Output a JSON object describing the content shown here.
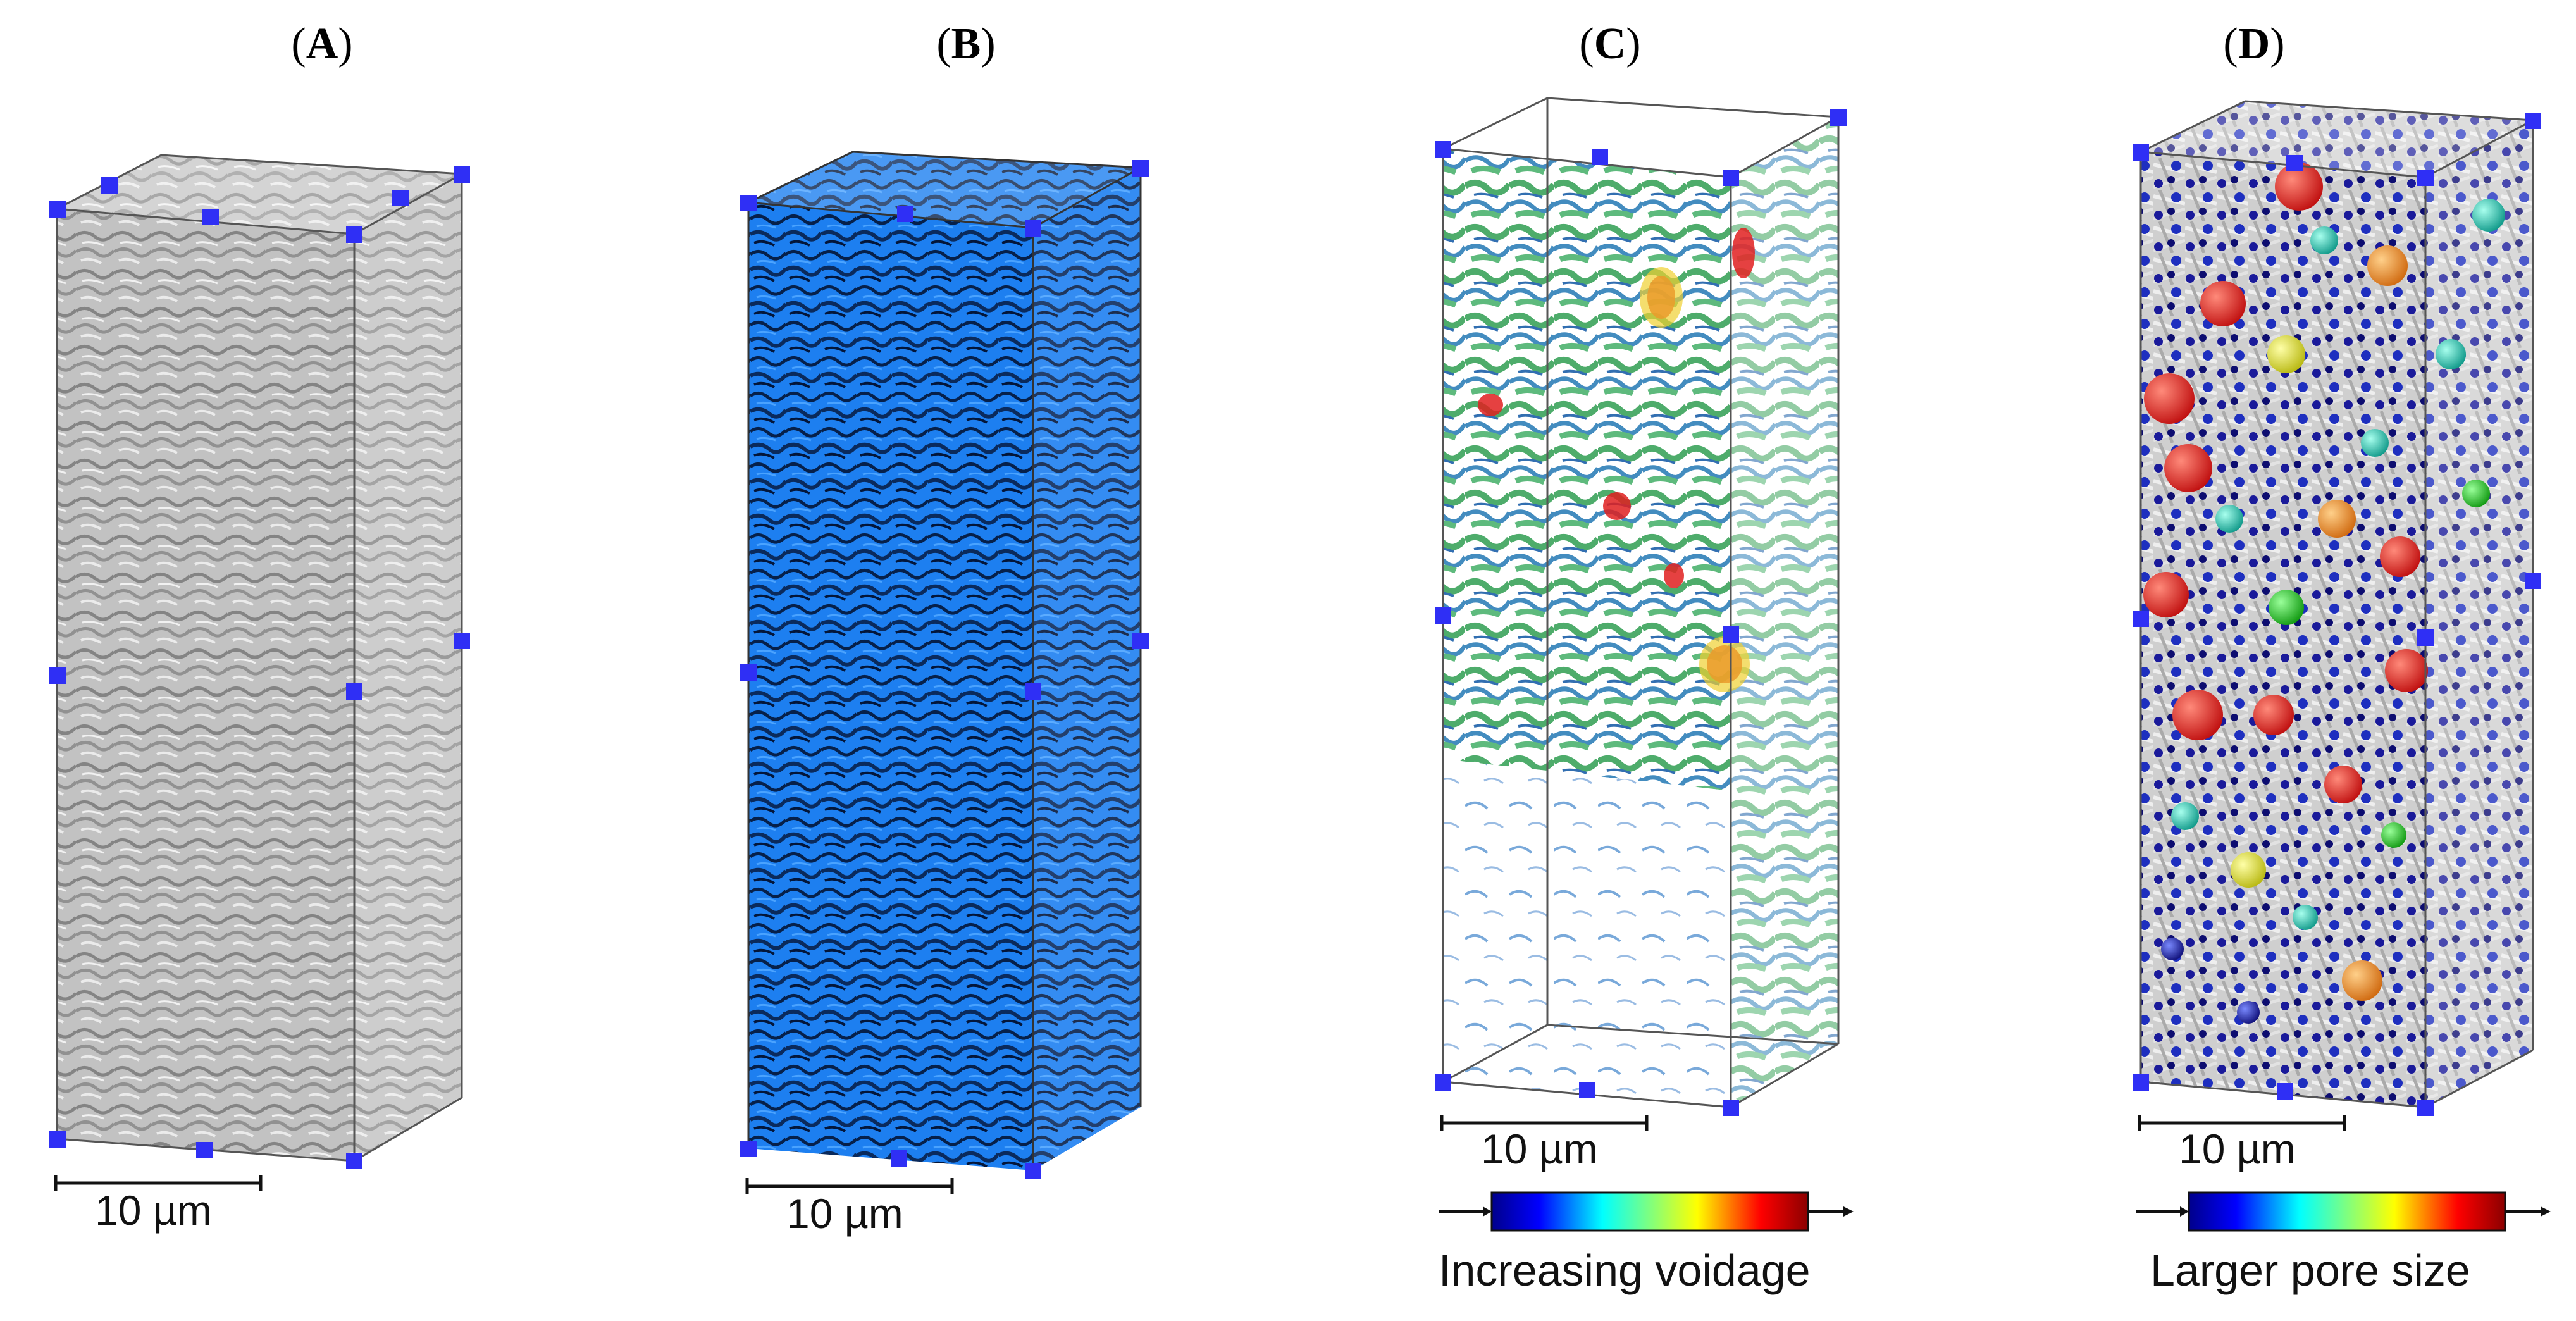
{
  "panels": [
    {
      "label": "A",
      "scale": "10 µm",
      "colorbar": null
    },
    {
      "label": "B",
      "scale": "10 µm",
      "colorbar": null
    },
    {
      "label": "C",
      "scale": "10 µm",
      "colorbar": "Increasing voidage"
    },
    {
      "label": "D",
      "scale": "10 µm",
      "colorbar": "Larger pore size"
    }
  ],
  "colors": {
    "marker": "#2f2ff5",
    "solid_grey": "#a9a9a9",
    "pore_blue": "#1a78e8",
    "edge": "#444444"
  }
}
